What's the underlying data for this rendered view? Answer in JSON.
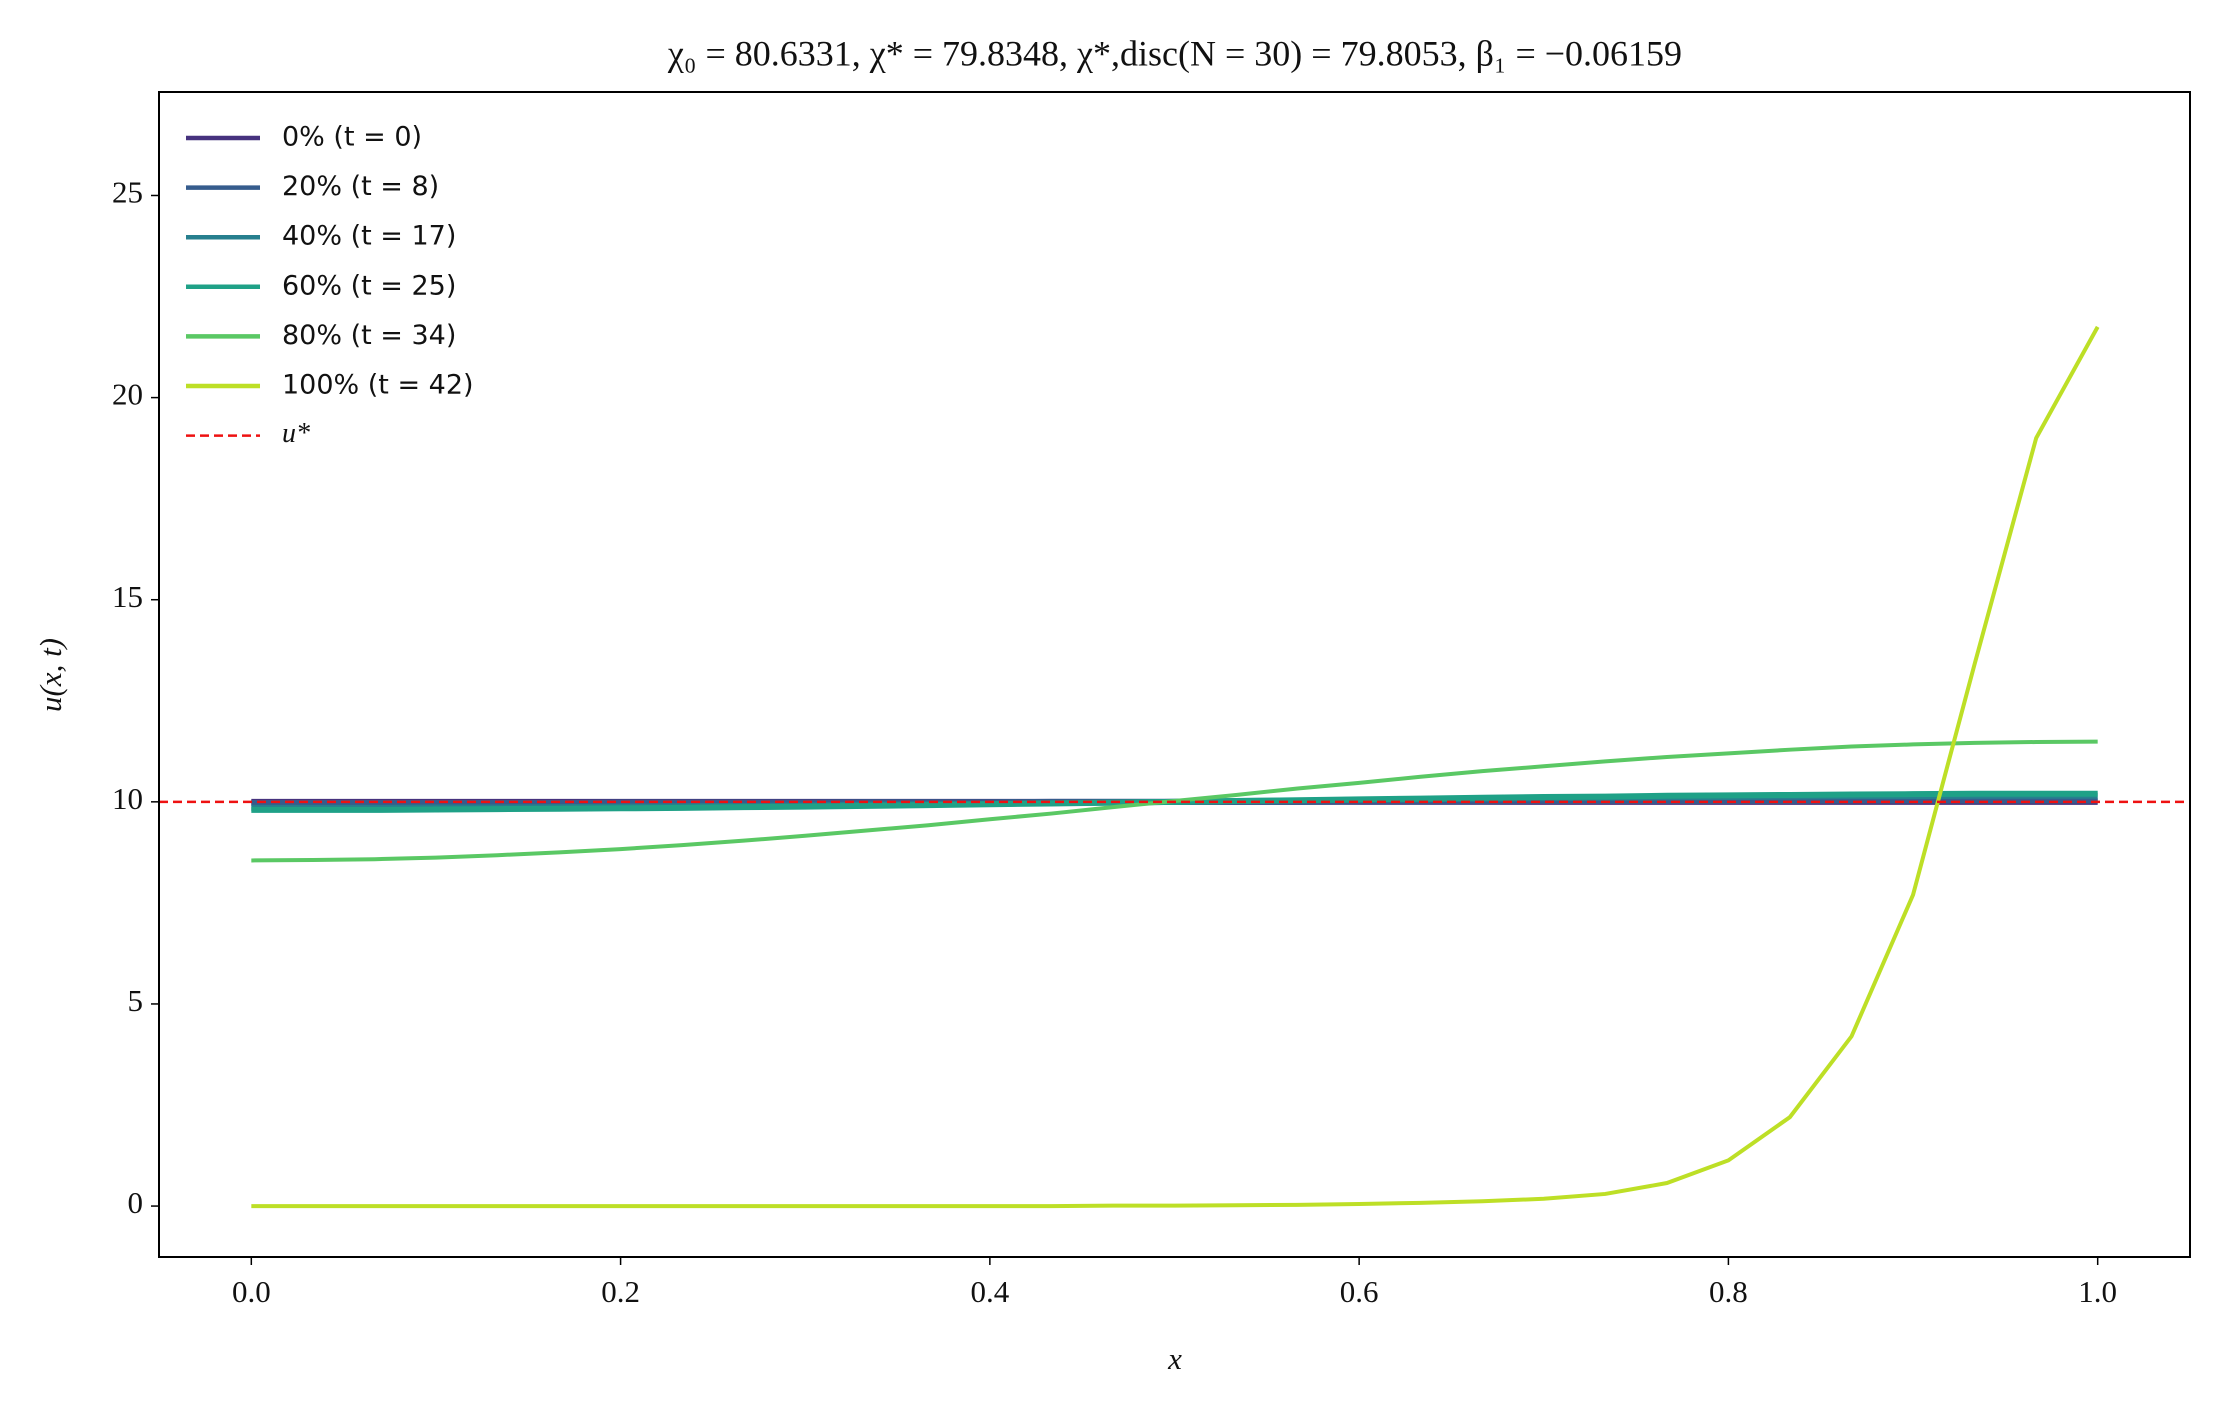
{
  "chart_data": {
    "type": "line",
    "title": "χ₀ = 80.6331,  χ* = 79.8348,  χ*,disc(N = 30) = 79.8053,  β₁ = −0.06159",
    "x_label": "x",
    "y_label": "u(x, t)",
    "x": [
      0,
      0.0333,
      0.0667,
      0.1,
      0.1333,
      0.1667,
      0.2,
      0.2333,
      0.2667,
      0.3,
      0.3333,
      0.3667,
      0.4,
      0.4333,
      0.4667,
      0.5,
      0.5333,
      0.5667,
      0.6,
      0.6333,
      0.6667,
      0.7,
      0.7333,
      0.7667,
      0.8,
      0.8333,
      0.8667,
      0.9,
      0.9333,
      0.9667,
      1
    ],
    "series": [
      {
        "name": "0% (t = 0)",
        "color": "#46327e",
        "values": [
          10,
          10,
          10,
          10,
          10,
          10,
          10,
          10,
          10,
          10,
          10,
          10,
          10,
          10,
          10,
          10,
          10,
          10,
          10,
          10,
          10,
          10,
          10,
          10,
          10,
          10,
          10,
          10,
          10,
          10,
          10
        ]
      },
      {
        "name": "20% (t = 8)",
        "color": "#365c8d",
        "values": [
          9.97,
          9.97,
          9.97,
          9.97,
          9.97,
          9.97,
          9.98,
          9.98,
          9.98,
          9.98,
          9.99,
          9.99,
          9.99,
          10,
          10,
          10,
          10,
          10,
          10.01,
          10.01,
          10.01,
          10.02,
          10.02,
          10.02,
          10.02,
          10.02,
          10.03,
          10.03,
          10.03,
          10.03,
          10.03
        ]
      },
      {
        "name": "40% (t = 17)",
        "color": "#277f8e",
        "values": [
          9.85,
          9.85,
          9.85,
          9.86,
          9.86,
          9.87,
          9.88,
          9.89,
          9.9,
          9.91,
          9.93,
          9.94,
          9.95,
          9.97,
          9.98,
          10,
          10.02,
          10.03,
          10.05,
          10.06,
          10.08,
          10.09,
          10.1,
          10.11,
          10.12,
          10.13,
          10.14,
          10.14,
          10.15,
          10.15,
          10.15
        ]
      },
      {
        "name": "60% (t = 25)",
        "color": "#1fa187",
        "values": [
          9.8,
          9.8,
          9.8,
          9.81,
          9.82,
          9.83,
          9.84,
          9.85,
          9.87,
          9.88,
          9.9,
          9.92,
          9.94,
          9.96,
          9.98,
          10,
          10.02,
          10.04,
          10.06,
          10.08,
          10.1,
          10.12,
          10.13,
          10.15,
          10.16,
          10.17,
          10.18,
          10.19,
          10.2,
          10.2,
          10.2
        ]
      },
      {
        "name": "80% (t = 34)",
        "color": "#5ac864",
        "values": [
          8.55,
          8.56,
          8.58,
          8.62,
          8.68,
          8.75,
          8.83,
          8.93,
          9.04,
          9.16,
          9.29,
          9.42,
          9.57,
          9.71,
          9.87,
          10.02,
          10.17,
          10.33,
          10.47,
          10.62,
          10.76,
          10.88,
          11,
          11.11,
          11.2,
          11.29,
          11.37,
          11.42,
          11.46,
          11.48,
          11.49
        ]
      },
      {
        "name": "100% (t = 42)",
        "color": "#bddf26",
        "values": [
          0,
          0,
          0,
          0,
          0,
          0,
          0,
          0,
          0,
          0,
          0,
          0,
          0,
          0,
          0.01,
          0.01,
          0.02,
          0.03,
          0.05,
          0.08,
          0.12,
          0.18,
          0.3,
          0.57,
          1.13,
          2.2,
          4.2,
          7.7,
          13.4,
          19,
          21.75
        ]
      }
    ],
    "reference_line": {
      "name": "u*",
      "value": 10,
      "color": "#ee1111"
    },
    "xlim": [
      -0.05,
      1.05
    ],
    "xticks": [
      {
        "value": 0,
        "label": "0.0"
      },
      {
        "value": 0.2,
        "label": "0.2"
      },
      {
        "value": 0.4,
        "label": "0.4"
      },
      {
        "value": 0.6,
        "label": "0.6"
      },
      {
        "value": 0.8,
        "label": "0.8"
      },
      {
        "value": 1,
        "label": "1.0"
      }
    ],
    "ylim": [
      -1.26,
      27.56
    ],
    "yticks": [
      0,
      5,
      10,
      15,
      20,
      25
    ],
    "legend": "upper left"
  }
}
